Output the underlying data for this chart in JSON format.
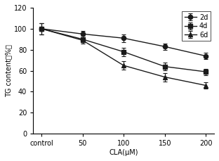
{
  "x_labels": [
    "control",
    "50",
    "100",
    "150",
    "200"
  ],
  "x_positions": [
    0,
    1,
    2,
    3,
    4
  ],
  "series": [
    {
      "label": "2d",
      "marker": "o",
      "color": "#1a1a1a",
      "values": [
        100,
        95,
        91,
        83,
        74
      ],
      "yerr": [
        5.5,
        3,
        3.5,
        3,
        3
      ]
    },
    {
      "label": "4d",
      "marker": "s",
      "color": "#1a1a1a",
      "values": [
        100,
        90,
        78,
        64,
        59
      ],
      "yerr": [
        5.5,
        3,
        4,
        3.5,
        3
      ]
    },
    {
      "label": "6d",
      "marker": "^",
      "color": "#1a1a1a",
      "values": [
        100,
        89,
        65,
        54,
        46
      ],
      "yerr": [
        5.5,
        3,
        4,
        4,
        3
      ]
    }
  ],
  "ylabel": "TG content（%）",
  "xlabel": "CLA(μM)",
  "ylim": [
    0,
    120
  ],
  "yticks": [
    0,
    20,
    40,
    60,
    80,
    100,
    120
  ],
  "background_color": "#ffffff"
}
